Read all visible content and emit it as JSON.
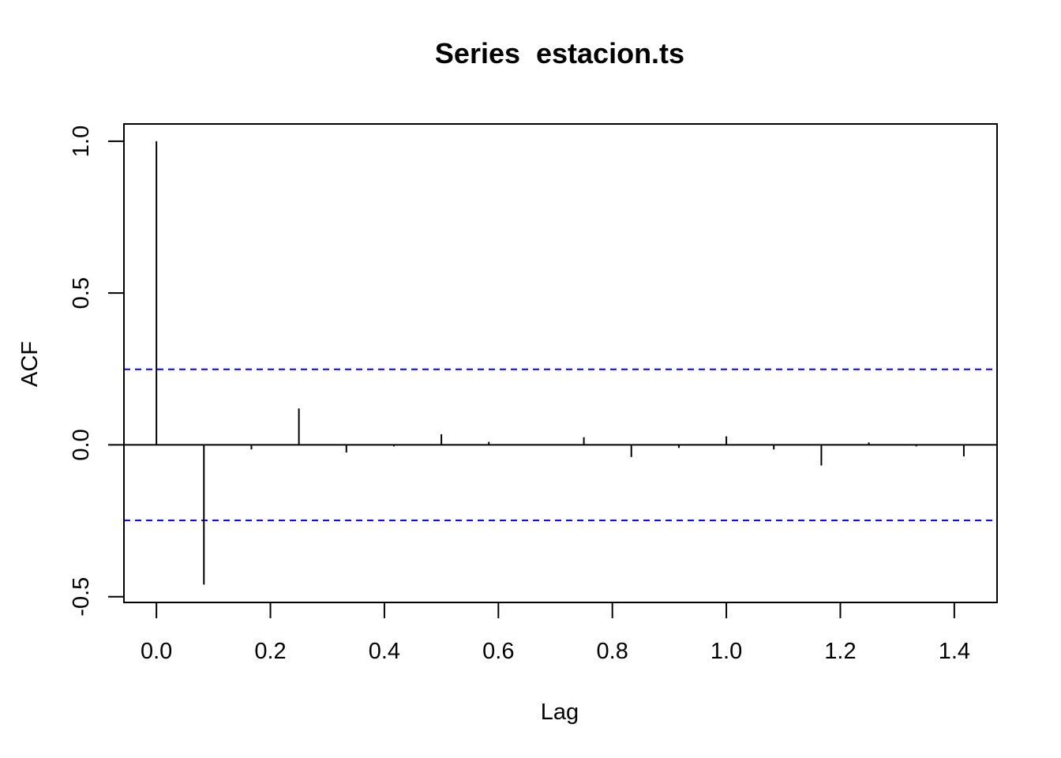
{
  "chart_data": {
    "type": "bar",
    "title": "Series  estacion.ts",
    "xlabel": "Lag",
    "ylabel": "ACF",
    "xlim": [
      -0.057,
      1.475
    ],
    "ylim": [
      -0.519,
      1.057
    ],
    "x_ticks": [
      "0.0",
      "0.2",
      "0.4",
      "0.6",
      "0.8",
      "1.0",
      "1.2",
      "1.4"
    ],
    "y_ticks": [
      "-0.5",
      "0.0",
      "0.5",
      "1.0"
    ],
    "x_tick_values": [
      0.0,
      0.2,
      0.4,
      0.6,
      0.8,
      1.0,
      1.2,
      1.4
    ],
    "y_tick_values": [
      -0.5,
      0.0,
      0.5,
      1.0
    ],
    "lags": [
      0.0,
      0.0833,
      0.1667,
      0.25,
      0.3333,
      0.4167,
      0.5,
      0.5833,
      0.6667,
      0.75,
      0.8333,
      0.9167,
      1.0,
      1.0833,
      1.1667,
      1.25,
      1.3333,
      1.4167
    ],
    "acf": [
      1.0,
      -0.46,
      -0.015,
      0.12,
      -0.025,
      -0.005,
      0.035,
      0.01,
      0.0,
      0.025,
      -0.04,
      -0.01,
      0.028,
      -0.015,
      -0.068,
      0.008,
      -0.005,
      -0.038
    ],
    "confidence_bounds": [
      0.249,
      -0.249
    ],
    "confidence_color": "#0000FF",
    "bar_color": "#000000",
    "grid": false
  }
}
